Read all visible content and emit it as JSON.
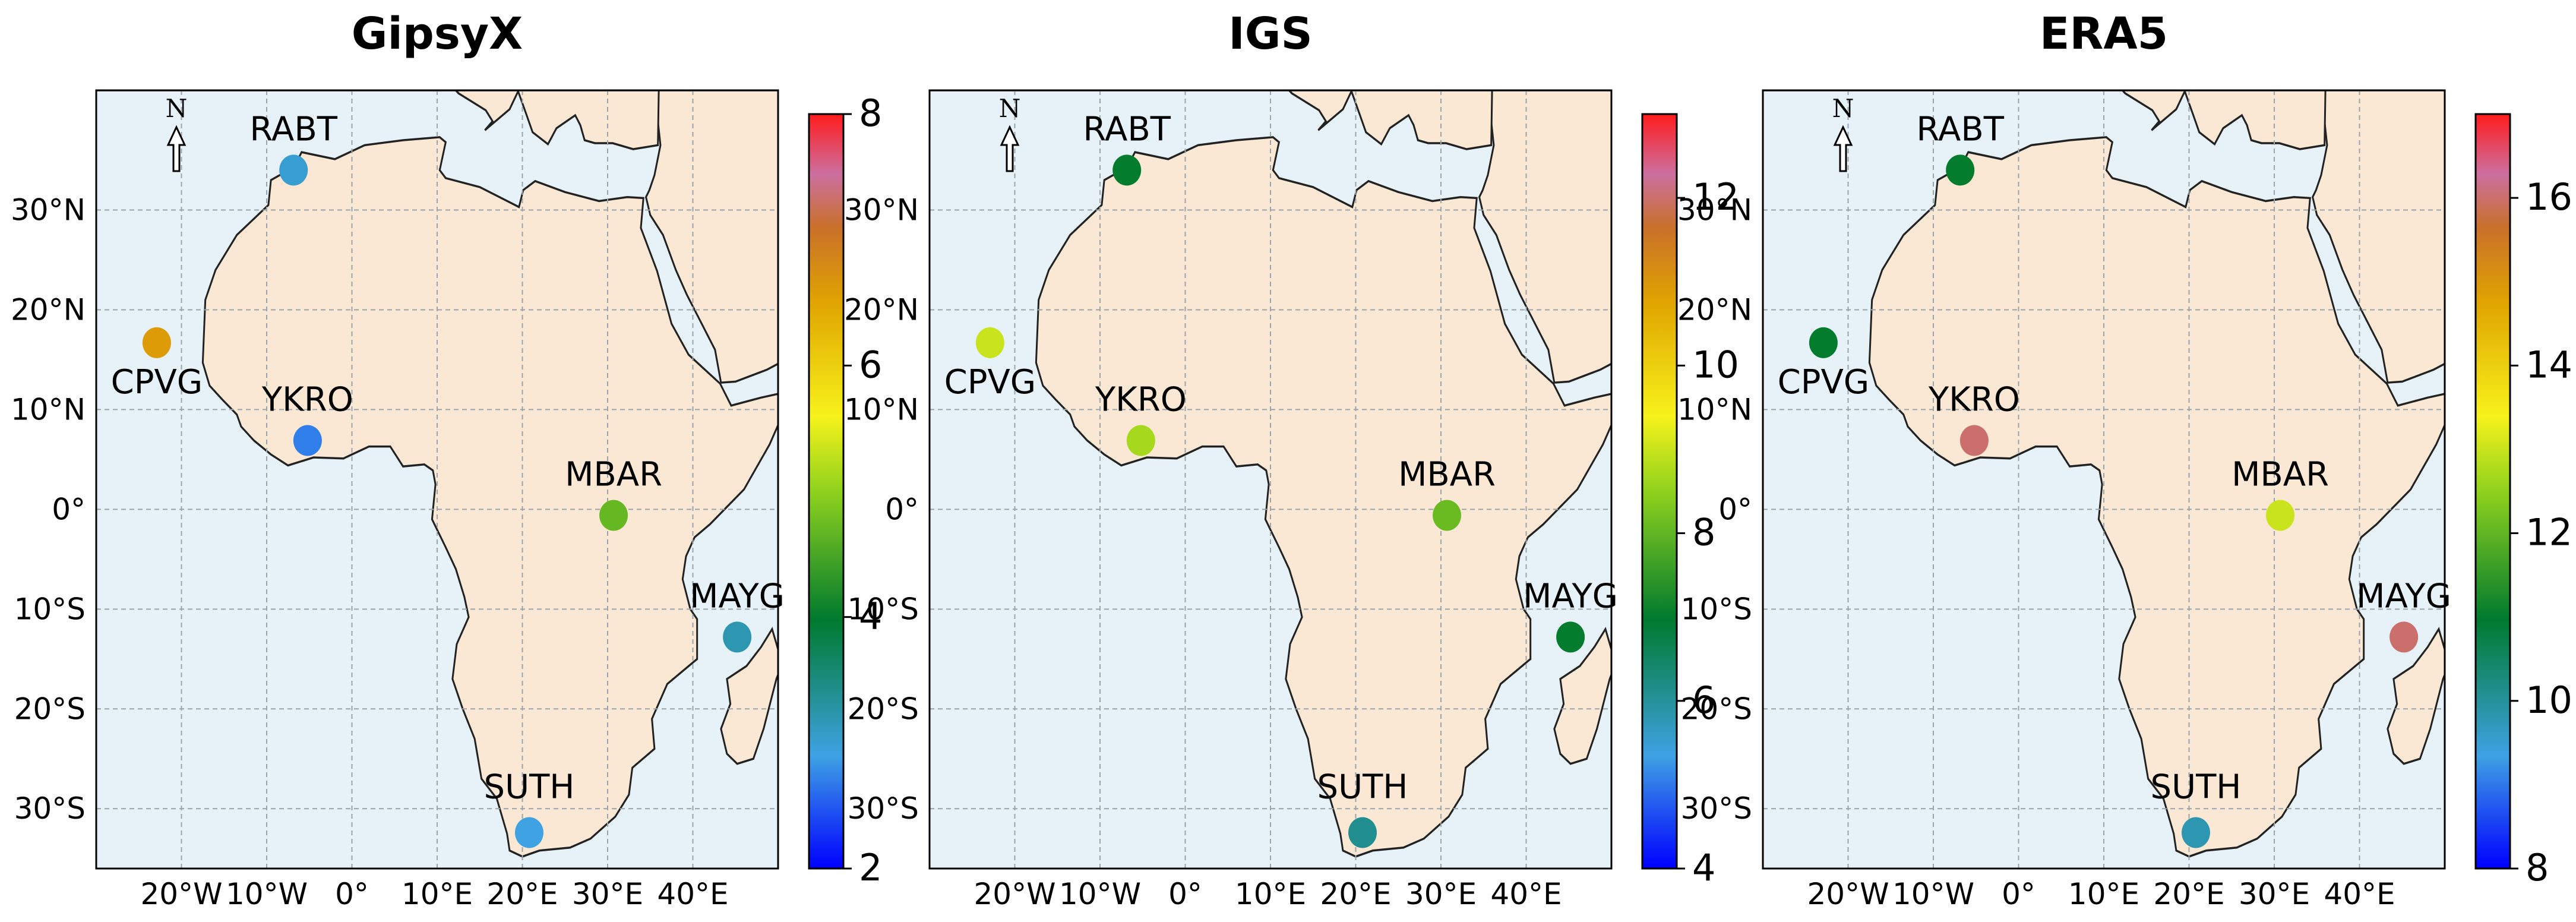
{
  "chart_data": [
    {
      "type": "map",
      "title": "GipsyX",
      "colorbar": {
        "min": 2,
        "max": 8,
        "ticks": [
          2,
          4,
          6,
          8
        ]
      },
      "stations": [
        {
          "name": "RABT",
          "lon": -6.85,
          "lat": 34.0,
          "value": 3.0
        },
        {
          "name": "CPVG",
          "lon": -22.9,
          "lat": 16.7,
          "value": 6.6
        },
        {
          "name": "YKRO",
          "lon": -5.2,
          "lat": 6.9,
          "value": 2.7
        },
        {
          "name": "MBAR",
          "lon": 30.7,
          "lat": -0.6,
          "value": 4.7
        },
        {
          "name": "MAYG",
          "lon": 45.2,
          "lat": -12.8,
          "value": 3.2
        },
        {
          "name": "SUTH",
          "lon": 20.8,
          "lat": -32.4,
          "value": 2.9
        }
      ]
    },
    {
      "type": "map",
      "title": "IGS",
      "colorbar": {
        "min": 4,
        "max": 13,
        "ticks": [
          4,
          6,
          8,
          10,
          12
        ]
      },
      "stations": [
        {
          "name": "RABT",
          "lon": -6.85,
          "lat": 34.0,
          "value": 7.0
        },
        {
          "name": "CPVG",
          "lon": -22.9,
          "lat": 16.7,
          "value": 9.0
        },
        {
          "name": "YKRO",
          "lon": -5.2,
          "lat": 6.9,
          "value": 8.7
        },
        {
          "name": "MBAR",
          "lon": 30.7,
          "lat": -0.6,
          "value": 8.1
        },
        {
          "name": "MAYG",
          "lon": 45.2,
          "lat": -12.8,
          "value": 7.0
        },
        {
          "name": "SUTH",
          "lon": 20.8,
          "lat": -32.4,
          "value": 6.1
        }
      ]
    },
    {
      "type": "map",
      "title": "ERA5",
      "colorbar": {
        "min": 8,
        "max": 17,
        "ticks": [
          8,
          10,
          12,
          14,
          16
        ]
      },
      "stations": [
        {
          "name": "RABT",
          "lon": -6.85,
          "lat": 34.0,
          "value": 11.0
        },
        {
          "name": "CPVG",
          "lon": -22.9,
          "lat": 16.7,
          "value": 11.0
        },
        {
          "name": "YKRO",
          "lon": -5.2,
          "lat": 6.9,
          "value": 16.0
        },
        {
          "name": "MBAR",
          "lon": 30.7,
          "lat": -0.6,
          "value": 13.0
        },
        {
          "name": "MAYG",
          "lon": 45.2,
          "lat": -12.8,
          "value": 16.0
        },
        {
          "name": "SUTH",
          "lon": 20.8,
          "lat": -32.4,
          "value": 9.8
        }
      ]
    }
  ],
  "map": {
    "lon_range": [
      -30,
      50
    ],
    "lat_range": [
      -36,
      42
    ],
    "lon_ticks": [
      "20°W",
      "10°W",
      "0°",
      "10°E",
      "20°E",
      "30°E",
      "40°E"
    ],
    "lat_ticks": [
      "30°N",
      "20°N",
      "10°N",
      "0°",
      "10°S",
      "20°S",
      "30°S"
    ],
    "north_arrow_label": "N",
    "grid": true
  },
  "colors": {
    "ocean": "#e6f2f8",
    "land": "#fae8d4",
    "coast": "#222222",
    "grid": "#9aa4aa",
    "colormap": [
      "#0000ff",
      "#3ea2e3",
      "#007a2e",
      "#f7f21b",
      "#e0a400",
      "#c9702a",
      "#cc6fa0",
      "#ff1c1c"
    ]
  }
}
